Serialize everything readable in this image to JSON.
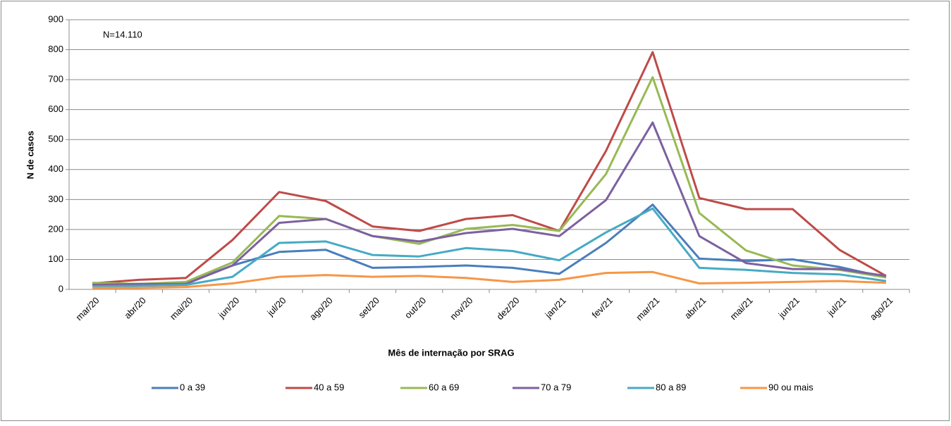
{
  "chart_data": {
    "type": "line",
    "annotation": "N=14.110",
    "x_label": "Mês de internação por SRAG",
    "y_label": "N de casos",
    "categories": [
      "mar/20",
      "abr/20",
      "mai/20",
      "jun/20",
      "jul/20",
      "ago/20",
      "set/20",
      "out/20",
      "nov/20",
      "dez/20",
      "jan/21",
      "fev/21",
      "mar/21",
      "abr/21",
      "mai/21",
      "jun/21",
      "jul/21",
      "ago/21"
    ],
    "series": [
      {
        "name": "0 a 39",
        "color": "#4a7ebb",
        "values": [
          15,
          18,
          22,
          80,
          125,
          132,
          72,
          75,
          80,
          72,
          52,
          155,
          283,
          103,
          95,
          100,
          75,
          40
        ]
      },
      {
        "name": "40 a 59",
        "color": "#be4b48",
        "values": [
          20,
          32,
          38,
          165,
          325,
          295,
          210,
          195,
          235,
          248,
          195,
          462,
          792,
          305,
          268,
          268,
          132,
          45
        ]
      },
      {
        "name": "60 a 69",
        "color": "#98b954",
        "values": [
          22,
          18,
          25,
          90,
          245,
          235,
          178,
          152,
          202,
          215,
          195,
          385,
          708,
          255,
          130,
          80,
          65,
          40
        ]
      },
      {
        "name": "70 a 79",
        "color": "#7d60a0",
        "values": [
          15,
          18,
          18,
          80,
          222,
          235,
          178,
          160,
          188,
          202,
          178,
          298,
          557,
          178,
          88,
          68,
          68,
          45
        ]
      },
      {
        "name": "80 a 89",
        "color": "#46aac5",
        "values": [
          10,
          12,
          15,
          42,
          155,
          160,
          115,
          110,
          138,
          128,
          97,
          190,
          270,
          72,
          65,
          55,
          50,
          28
        ]
      },
      {
        "name": "90 ou mais",
        "color": "#f79646",
        "values": [
          5,
          5,
          8,
          20,
          42,
          48,
          42,
          45,
          38,
          25,
          32,
          55,
          58,
          20,
          22,
          25,
          28,
          22
        ]
      }
    ],
    "ylim": [
      0,
      900
    ],
    "yticks": [
      0,
      100,
      200,
      300,
      400,
      500,
      600,
      700,
      800,
      900
    ],
    "grid": true,
    "legend": "bottom"
  }
}
